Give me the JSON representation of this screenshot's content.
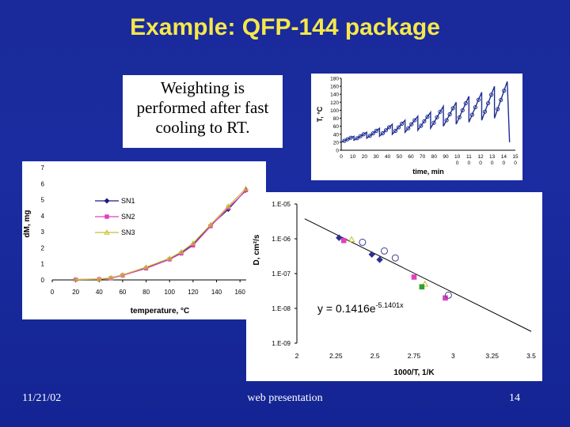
{
  "slide": {
    "title": "Example: QFP-144 package",
    "note_lines": [
      "Weighting is",
      "performed after fast",
      "cooling to RT."
    ],
    "footer_date": "11/21/02",
    "footer_center": "web presentation",
    "slide_number": "14",
    "background": "#1a2a9a",
    "title_color": "#f5e84a"
  },
  "chart_data": [
    {
      "type": "line",
      "ylabel": "T, °C",
      "xlabel": "time, min",
      "ylim": [
        0,
        180
      ],
      "yticks": [
        "0",
        "20",
        "40",
        "60",
        "80",
        "100",
        "120",
        "140",
        "160",
        "180"
      ],
      "xticks": [
        "0",
        "10",
        "20",
        "30",
        "40",
        "50",
        "60",
        "70",
        "80",
        "90",
        "100",
        "110",
        "120",
        "130",
        "140",
        "150"
      ],
      "color": "#1f2f90",
      "cycles": [
        {
          "start": 0,
          "end": 11,
          "t_start": 20,
          "t_end": 35
        },
        {
          "start": 11,
          "end": 22,
          "t_start": 25,
          "t_end": 45
        },
        {
          "start": 22,
          "end": 33,
          "t_start": 30,
          "t_end": 55
        },
        {
          "start": 33,
          "end": 44,
          "t_start": 35,
          "t_end": 65
        },
        {
          "start": 44,
          "end": 55,
          "t_start": 40,
          "t_end": 75
        },
        {
          "start": 55,
          "end": 66,
          "t_start": 45,
          "t_end": 85
        },
        {
          "start": 66,
          "end": 77,
          "t_start": 50,
          "t_end": 95
        },
        {
          "start": 77,
          "end": 88,
          "t_start": 55,
          "t_end": 110
        },
        {
          "start": 88,
          "end": 99,
          "t_start": 60,
          "t_end": 120
        },
        {
          "start": 99,
          "end": 110,
          "t_start": 65,
          "t_end": 135
        },
        {
          "start": 110,
          "end": 121,
          "t_start": 70,
          "t_end": 145
        },
        {
          "start": 121,
          "end": 132,
          "t_start": 75,
          "t_end": 160
        },
        {
          "start": 132,
          "end": 143,
          "t_start": 80,
          "t_end": 172
        }
      ],
      "end": {
        "x": 145,
        "y": 20
      }
    },
    {
      "type": "line",
      "ylabel": "dM, mg",
      "xlabel": "temperature, °C",
      "xlim": [
        0,
        170
      ],
      "ylim": [
        0,
        7
      ],
      "xticks": [
        "0",
        "20",
        "40",
        "60",
        "80",
        "100",
        "120",
        "140",
        "160"
      ],
      "yticks": [
        "0",
        "1",
        "2",
        "3",
        "4",
        "5",
        "6",
        "7"
      ],
      "x": [
        20,
        40,
        50,
        60,
        80,
        100,
        110,
        120,
        135,
        150,
        165
      ],
      "series": [
        {
          "name": "SN1",
          "color": "#1a1a80",
          "marker": "diamond",
          "values": [
            0.02,
            0.05,
            0.12,
            0.3,
            0.75,
            1.3,
            1.7,
            2.2,
            3.4,
            4.4,
            5.6
          ]
        },
        {
          "name": "SN2",
          "color": "#e040c0",
          "marker": "square",
          "values": [
            0.02,
            0.04,
            0.1,
            0.28,
            0.72,
            1.28,
            1.65,
            2.15,
            3.35,
            4.5,
            5.55
          ]
        },
        {
          "name": "SN3",
          "color": "#c8c030",
          "marker": "triangle",
          "values": [
            0.03,
            0.06,
            0.14,
            0.32,
            0.8,
            1.35,
            1.75,
            2.3,
            3.45,
            4.6,
            5.7
          ]
        }
      ]
    },
    {
      "type": "scatter",
      "ylabel": "D, cm²/s",
      "xlabel": "1000/T, 1/K",
      "xlim": [
        2,
        3.5
      ],
      "ylim_log10": [
        -9,
        -5
      ],
      "xticks": [
        "2",
        "2.25",
        "2.5",
        "2.75",
        "3",
        "3.25",
        "3.5"
      ],
      "yticks": [
        "1.E-05",
        "1.E-06",
        "1.E-07",
        "1.E-08",
        "1.E-09"
      ],
      "fit_label": "y = 0.1416e",
      "fit_exponent": "-5.1401x",
      "fit": {
        "a": 0.1416,
        "b": -5.1401
      },
      "points": [
        {
          "x": 2.27,
          "log10y": -5.97,
          "marker": "diamond",
          "color": "#303090"
        },
        {
          "x": 2.3,
          "log10y": -6.05,
          "marker": "square",
          "color": "#e040c0"
        },
        {
          "x": 2.35,
          "log10y": -6.02,
          "marker": "triangle",
          "color": "#c8c030"
        },
        {
          "x": 2.42,
          "log10y": -6.1,
          "marker": "circle",
          "color": "#404090"
        },
        {
          "x": 2.48,
          "log10y": -6.45,
          "marker": "diamond",
          "color": "#303090"
        },
        {
          "x": 2.53,
          "log10y": -6.6,
          "marker": "diamond",
          "color": "#303090"
        },
        {
          "x": 2.56,
          "log10y": -6.35,
          "marker": "circle",
          "color": "#404090"
        },
        {
          "x": 2.63,
          "log10y": -6.55,
          "marker": "circle",
          "color": "#404090"
        },
        {
          "x": 2.75,
          "log10y": -7.1,
          "marker": "square",
          "color": "#e040c0"
        },
        {
          "x": 2.82,
          "log10y": -7.3,
          "marker": "triangle",
          "color": "#c8c030"
        },
        {
          "x": 2.8,
          "log10y": -7.38,
          "marker": "square",
          "color": "#30a030"
        },
        {
          "x": 2.95,
          "log10y": -7.7,
          "marker": "square",
          "color": "#e040c0"
        },
        {
          "x": 2.97,
          "log10y": -7.62,
          "marker": "circle",
          "color": "#404090"
        }
      ]
    }
  ]
}
